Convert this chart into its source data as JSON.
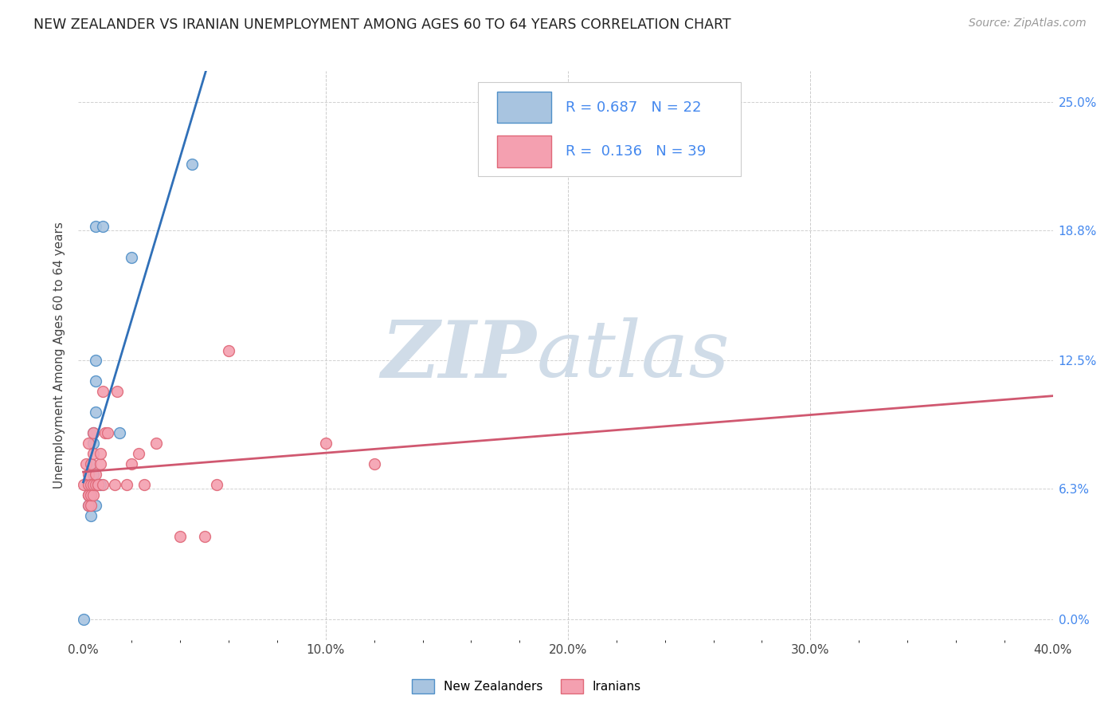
{
  "title": "NEW ZEALANDER VS IRANIAN UNEMPLOYMENT AMONG AGES 60 TO 64 YEARS CORRELATION CHART",
  "source": "Source: ZipAtlas.com",
  "xlabel_ticks": [
    "0.0%",
    "",
    "",
    "",
    "",
    "10.0%",
    "",
    "",
    "",
    "",
    "20.0%",
    "",
    "",
    "",
    "",
    "30.0%",
    "",
    "",
    "",
    "",
    "40.0%"
  ],
  "xlabel_tick_vals": [
    0.0,
    0.02,
    0.04,
    0.06,
    0.08,
    0.1,
    0.12,
    0.14,
    0.16,
    0.18,
    0.2,
    0.22,
    0.24,
    0.26,
    0.28,
    0.3,
    0.32,
    0.34,
    0.36,
    0.38,
    0.4
  ],
  "xlabel_major_ticks": [
    "0.0%",
    "10.0%",
    "20.0%",
    "30.0%",
    "40.0%"
  ],
  "xlabel_major_vals": [
    0.0,
    0.1,
    0.2,
    0.3,
    0.4
  ],
  "ylabel_ticks": [
    "0.0%",
    "6.3%",
    "12.5%",
    "18.8%",
    "25.0%"
  ],
  "ylabel_tick_vals": [
    0.0,
    0.063,
    0.125,
    0.188,
    0.25
  ],
  "ylabel": "Unemployment Among Ages 60 to 64 years",
  "legend_label1": "New Zealanders",
  "legend_label2": "Iranians",
  "r1": "0.687",
  "n1": "22",
  "r2": "0.136",
  "n2": "39",
  "nz_color": "#a8c4e0",
  "ir_color": "#f4a0b0",
  "nz_edge_color": "#5090c8",
  "ir_edge_color": "#e06878",
  "nz_line_color": "#3070b8",
  "ir_line_color": "#d05870",
  "watermark_zip": "ZIP",
  "watermark_atlas": "atlas",
  "watermark_color": "#d0dce8",
  "nz_x": [
    0.0,
    0.002,
    0.002,
    0.002,
    0.003,
    0.003,
    0.003,
    0.003,
    0.004,
    0.004,
    0.004,
    0.004,
    0.005,
    0.005,
    0.005,
    0.005,
    0.005,
    0.007,
    0.008,
    0.015,
    0.02,
    0.045
  ],
  "nz_y": [
    0.0,
    0.055,
    0.06,
    0.065,
    0.05,
    0.06,
    0.063,
    0.075,
    0.065,
    0.07,
    0.085,
    0.09,
    0.055,
    0.1,
    0.115,
    0.125,
    0.19,
    0.065,
    0.19,
    0.09,
    0.175,
    0.22
  ],
  "ir_x": [
    0.0,
    0.001,
    0.002,
    0.002,
    0.002,
    0.002,
    0.002,
    0.002,
    0.003,
    0.003,
    0.003,
    0.003,
    0.004,
    0.004,
    0.004,
    0.004,
    0.005,
    0.005,
    0.006,
    0.006,
    0.007,
    0.007,
    0.008,
    0.008,
    0.009,
    0.01,
    0.013,
    0.014,
    0.018,
    0.02,
    0.023,
    0.025,
    0.03,
    0.04,
    0.05,
    0.055,
    0.06,
    0.1,
    0.12
  ],
  "ir_y": [
    0.065,
    0.075,
    0.055,
    0.06,
    0.06,
    0.065,
    0.07,
    0.085,
    0.055,
    0.06,
    0.065,
    0.075,
    0.06,
    0.065,
    0.08,
    0.09,
    0.065,
    0.07,
    0.065,
    0.065,
    0.075,
    0.08,
    0.065,
    0.11,
    0.09,
    0.09,
    0.065,
    0.11,
    0.065,
    0.075,
    0.08,
    0.065,
    0.085,
    0.04,
    0.04,
    0.065,
    0.13,
    0.085,
    0.075
  ],
  "xlim": [
    -0.002,
    0.4
  ],
  "ylim": [
    -0.01,
    0.265
  ],
  "marker_size": 100
}
